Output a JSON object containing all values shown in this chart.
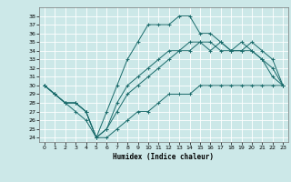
{
  "xlabel": "Humidex (Indice chaleur)",
  "bg_color": "#cce8e8",
  "grid_color": "#ffffff",
  "line_color": "#1a6b6b",
  "marker": "+",
  "xlim": [
    -0.5,
    23.5
  ],
  "ylim": [
    23.5,
    39.0
  ],
  "xticks": [
    0,
    1,
    2,
    3,
    4,
    5,
    6,
    7,
    8,
    9,
    10,
    11,
    12,
    13,
    14,
    15,
    16,
    17,
    18,
    19,
    20,
    21,
    22,
    23
  ],
  "yticks": [
    24,
    25,
    26,
    27,
    28,
    29,
    30,
    31,
    32,
    33,
    34,
    35,
    36,
    37,
    38
  ],
  "series": [
    [
      30,
      29,
      28,
      27,
      26,
      24,
      27,
      30,
      33,
      35,
      37,
      37,
      37,
      38,
      38,
      36,
      36,
      35,
      34,
      35,
      34,
      33,
      31,
      30
    ],
    [
      30,
      29,
      28,
      28,
      27,
      24,
      25,
      27,
      29,
      30,
      31,
      32,
      33,
      34,
      34,
      35,
      35,
      34,
      34,
      34,
      35,
      34,
      33,
      30
    ],
    [
      30,
      29,
      28,
      28,
      27,
      24,
      24,
      25,
      26,
      27,
      27,
      28,
      29,
      29,
      29,
      30,
      30,
      30,
      30,
      30,
      30,
      30,
      30,
      30
    ],
    [
      30,
      29,
      28,
      28,
      27,
      24,
      25,
      28,
      30,
      31,
      32,
      33,
      34,
      34,
      35,
      35,
      34,
      35,
      34,
      34,
      34,
      33,
      32,
      30
    ]
  ]
}
